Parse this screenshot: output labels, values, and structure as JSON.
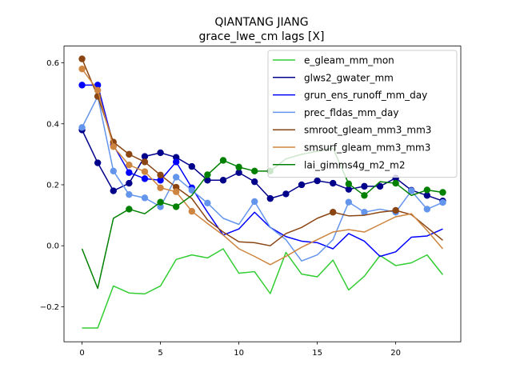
{
  "chart_data": {
    "type": "line",
    "title": "QIANTANG JIANG",
    "subtitle": "grace_lwe_cm lags [X]",
    "xlabel": "",
    "ylabel": "",
    "xlim": [
      -1.15,
      24.15
    ],
    "ylim": [
      -0.315,
      0.655
    ],
    "xticks": [
      0,
      5,
      10,
      15,
      20
    ],
    "yticks": [
      -0.2,
      0.0,
      0.2,
      0.4,
      0.6
    ],
    "xtick_labels": [
      "0",
      "5",
      "10",
      "15",
      "20"
    ],
    "ytick_labels": [
      "−0.2",
      "0.0",
      "0.2",
      "0.4",
      "0.6"
    ],
    "grid": false,
    "legend_position": "top-right",
    "x": [
      0,
      1,
      2,
      3,
      4,
      5,
      6,
      7,
      8,
      9,
      10,
      11,
      12,
      13,
      14,
      15,
      16,
      17,
      18,
      19,
      20,
      21,
      22,
      23
    ],
    "series": [
      {
        "name": "e_gleam_mm_mon",
        "color": "#32cd32",
        "values": [
          -0.27,
          -0.27,
          -0.132,
          -0.155,
          -0.158,
          -0.132,
          -0.045,
          -0.03,
          -0.04,
          -0.01,
          -0.09,
          -0.085,
          -0.157,
          -0.022,
          -0.093,
          -0.102,
          -0.047,
          -0.145,
          -0.1,
          -0.032,
          -0.065,
          -0.056,
          -0.03,
          -0.095
        ],
        "markers": []
      },
      {
        "name": "glws2_gwater_mm",
        "color": "#00008b",
        "values": [
          0.38,
          0.272,
          0.18,
          0.205,
          0.293,
          0.305,
          0.29,
          0.26,
          0.215,
          0.215,
          0.24,
          0.21,
          0.155,
          0.17,
          0.2,
          0.213,
          0.205,
          0.185,
          0.195,
          0.195,
          0.222,
          0.182,
          0.165,
          0.147
        ],
        "markers": [
          0,
          1,
          2,
          3,
          4,
          5,
          6,
          7,
          8,
          9,
          10,
          11,
          12,
          13,
          14,
          15,
          16,
          17,
          18,
          19,
          20,
          21,
          22,
          23
        ]
      },
      {
        "name": "grun_ens_runoff_mm_day",
        "color": "#0000ff",
        "values": [
          0.527,
          0.527,
          0.33,
          0.24,
          0.22,
          0.215,
          0.275,
          0.19,
          0.11,
          0.035,
          0.055,
          0.11,
          0.06,
          0.03,
          0.015,
          0.01,
          -0.01,
          0.04,
          0.015,
          -0.035,
          -0.02,
          0.028,
          0.032,
          0.055
        ],
        "markers": [
          0,
          1,
          2,
          3,
          4,
          5,
          6,
          7
        ]
      },
      {
        "name": "prec_fldas_mm_day",
        "color": "#6495ed",
        "values": [
          0.388,
          0.49,
          0.245,
          0.168,
          0.157,
          0.128,
          0.225,
          0.182,
          0.14,
          0.09,
          0.07,
          0.145,
          0.06,
          0.02,
          -0.05,
          -0.03,
          0.02,
          0.143,
          0.11,
          0.12,
          0.11,
          0.18,
          0.12,
          0.142
        ],
        "markers": [
          0,
          1,
          2,
          3,
          4,
          5,
          6,
          7,
          8,
          11,
          17,
          18,
          20,
          21,
          22,
          23
        ]
      },
      {
        "name": "smroot_gleam_mm3_mm3",
        "color": "#8b4513",
        "values": [
          0.613,
          0.49,
          0.34,
          0.3,
          0.275,
          0.232,
          0.192,
          0.155,
          0.085,
          0.045,
          0.013,
          0.01,
          0.0,
          0.04,
          0.06,
          0.09,
          0.11,
          0.098,
          0.1,
          0.11,
          0.116,
          0.102,
          0.06,
          0.018
        ],
        "markers": [
          0,
          1,
          2,
          3,
          4,
          5,
          6,
          16,
          20
        ]
      },
      {
        "name": "smsurf_gleam_mm3_mm3",
        "color": "#cd853f",
        "values": [
          0.58,
          0.51,
          0.325,
          0.265,
          0.243,
          0.19,
          0.177,
          0.113,
          0.073,
          0.035,
          -0.01,
          -0.035,
          -0.062,
          -0.035,
          -0.005,
          0.02,
          0.045,
          0.053,
          0.045,
          0.07,
          0.095,
          0.105,
          0.05,
          -0.01
        ],
        "markers": [
          0,
          1,
          2,
          3,
          4,
          5,
          6,
          7
        ]
      },
      {
        "name": "lai_gimms4g_m2_m2",
        "color": "#008000",
        "values": [
          -0.01,
          -0.14,
          0.09,
          0.12,
          0.105,
          0.143,
          0.128,
          0.165,
          0.233,
          0.28,
          0.258,
          0.245,
          0.245,
          0.285,
          0.3,
          0.31,
          0.32,
          0.203,
          0.165,
          0.21,
          0.205,
          0.165,
          0.183,
          0.175
        ],
        "markers": [
          3,
          5,
          6,
          8,
          9,
          10,
          11,
          12,
          17,
          18,
          20,
          22,
          23
        ]
      }
    ]
  }
}
